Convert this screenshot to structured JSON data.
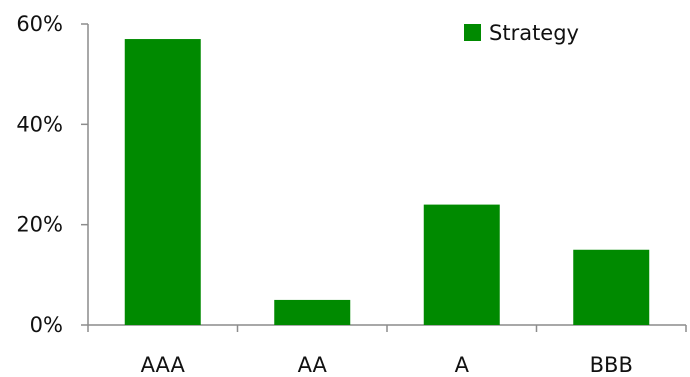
{
  "chart_data": {
    "type": "bar",
    "categories": [
      "AAA",
      "AA",
      "A",
      "BBB"
    ],
    "series": [
      {
        "name": "Strategy",
        "values": [
          57,
          5,
          24,
          15
        ],
        "color": "#008a00"
      }
    ],
    "y_ticks": [
      0,
      20,
      40,
      60
    ],
    "y_tick_labels": [
      "0%",
      "20%",
      "40%",
      "60%"
    ],
    "ylim": [
      0,
      60
    ],
    "y_unit": "%",
    "title": "",
    "xlabel": "",
    "ylabel": "",
    "grid": false,
    "legend_position": "top-right"
  }
}
